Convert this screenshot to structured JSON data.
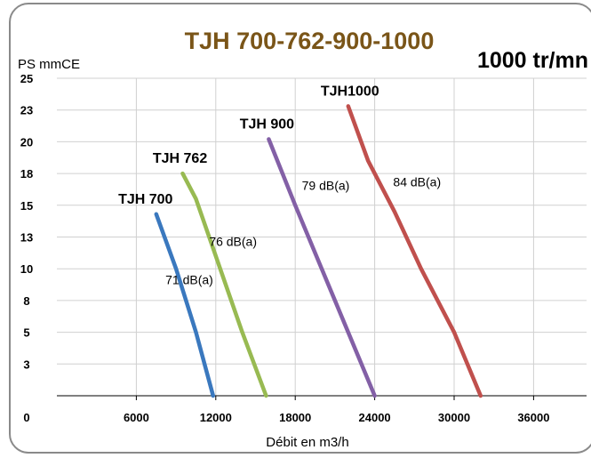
{
  "chart_data": {
    "type": "line",
    "title": "TJH  700-762-900-1000",
    "subtitle": "1000 tr/mn",
    "ylabel": "PS mmCE",
    "xlabel": "Débit en m3/h",
    "xlim": [
      0,
      40000
    ],
    "ylim": [
      0,
      25
    ],
    "x_ticks": [
      {
        "value": 0,
        "label": "0"
      },
      {
        "value": 6000,
        "label": "6000"
      },
      {
        "value": 12000,
        "label": "12000"
      },
      {
        "value": 18000,
        "label": "18000"
      },
      {
        "value": 24000,
        "label": "24000"
      },
      {
        "value": 30000,
        "label": "30000"
      },
      {
        "value": 36000,
        "label": "36000"
      }
    ],
    "y_ticks": [
      {
        "value": 2.5,
        "label": "3"
      },
      {
        "value": 5,
        "label": "5"
      },
      {
        "value": 7.5,
        "label": "8"
      },
      {
        "value": 10,
        "label": "10"
      },
      {
        "value": 12.5,
        "label": "13"
      },
      {
        "value": 15,
        "label": "15"
      },
      {
        "value": 17.5,
        "label": "18"
      },
      {
        "value": 20,
        "label": "20"
      },
      {
        "value": 22.5,
        "label": "23"
      },
      {
        "value": 25,
        "label": "25"
      }
    ],
    "grid": true,
    "series": [
      {
        "name": "TJH 700",
        "color": "#3a78be",
        "db_label": "71 dB(a)",
        "points": [
          [
            7500,
            14.3
          ],
          [
            9000,
            10.0
          ],
          [
            10500,
            5.0
          ],
          [
            11800,
            0.0
          ]
        ]
      },
      {
        "name": "TJH 762",
        "color": "#98ba52",
        "db_label": "76 dB(a)",
        "points": [
          [
            9500,
            17.5
          ],
          [
            10500,
            15.5
          ],
          [
            12000,
            11.0
          ],
          [
            14000,
            5.0
          ],
          [
            15800,
            0.0
          ]
        ]
      },
      {
        "name": "TJH 900",
        "color": "#8360a6",
        "db_label": "79 dB(a)",
        "points": [
          [
            16000,
            20.2
          ],
          [
            18000,
            15.0
          ],
          [
            20000,
            10.0
          ],
          [
            22000,
            5.0
          ],
          [
            24000,
            0.0
          ]
        ]
      },
      {
        "name": "TJH1000",
        "color": "#c0504d",
        "db_label": "84 dB(a)",
        "points": [
          [
            22000,
            22.8
          ],
          [
            23500,
            18.5
          ],
          [
            25500,
            14.5
          ],
          [
            27500,
            10.0
          ],
          [
            30000,
            5.0
          ],
          [
            32000,
            0.0
          ]
        ]
      }
    ]
  }
}
